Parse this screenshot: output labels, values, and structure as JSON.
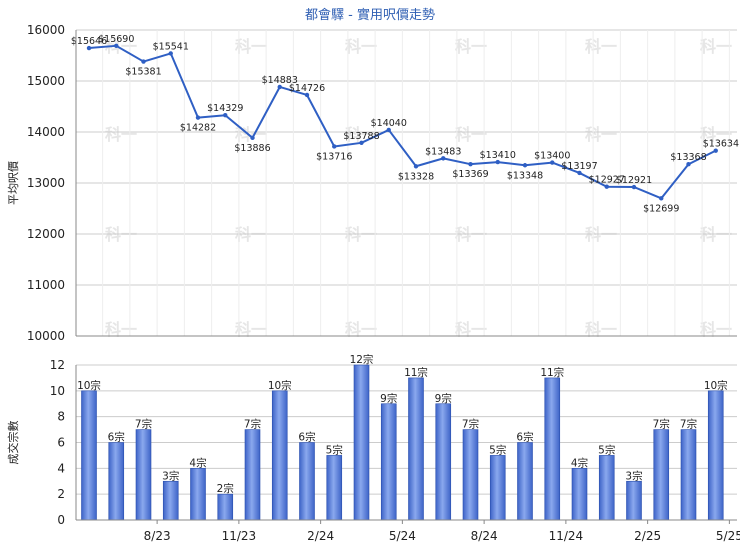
{
  "colors": {
    "line": "#2f5fc4",
    "bar": "#3d63c7",
    "bar_light": "#8aa8ee",
    "grid": "#cccccc",
    "title": "#2f5fb3"
  },
  "chart_data": [
    {
      "type": "line",
      "title": "都會驛 - 實用呎價走勢",
      "ylabel": "平均呎價",
      "ylim": [
        10000,
        16000
      ],
      "yticks": [
        "10000",
        "11000",
        "12000",
        "13000",
        "14000",
        "15000",
        "16000"
      ],
      "grid": true,
      "series": [
        {
          "values": [
            15646,
            15690,
            15381,
            15541,
            14282,
            14329,
            13886,
            14883,
            14726,
            13716,
            13788,
            14040,
            13328,
            13483,
            13369,
            13410,
            13348,
            13400,
            13197,
            12927,
            12921,
            12699,
            13368,
            13634
          ],
          "labels": [
            "$15646",
            "$15690",
            "$15381",
            "$15541",
            "$14282",
            "$14329",
            "$13886",
            "$14883",
            "$14726",
            "$13716",
            "$13788",
            "$14040",
            "$13328",
            "$13483",
            "$13369",
            "$13410",
            "$13348",
            "$13400",
            "$13197",
            "$12927",
            "$12921",
            "$12699",
            "$13368",
            "$13634"
          ]
        }
      ]
    },
    {
      "type": "bar",
      "ylabel": "成交宗數",
      "ylim": [
        0,
        12
      ],
      "yticks": [
        "0",
        "2",
        "4",
        "6",
        "8",
        "10",
        "12"
      ],
      "grid": true,
      "values": [
        10,
        6,
        7,
        3,
        4,
        2,
        7,
        10,
        6,
        5,
        12,
        9,
        11,
        9,
        7,
        5,
        6,
        11,
        4,
        5,
        3,
        7,
        7,
        10
      ],
      "labels": [
        "10宗",
        "6宗",
        "7宗",
        "3宗",
        "4宗",
        "2宗",
        "7宗",
        "10宗",
        "6宗",
        "5宗",
        "12宗",
        "9宗",
        "11宗",
        "9宗",
        "7宗",
        "5宗",
        "6宗",
        "11宗",
        "4宗",
        "5宗",
        "3宗",
        "7宗",
        "7宗",
        "10宗"
      ],
      "x_ticks": [
        {
          "index": 2,
          "label": "8/23"
        },
        {
          "index": 5,
          "label": "11/23"
        },
        {
          "index": 8,
          "label": "2/24"
        },
        {
          "index": 11,
          "label": "5/24"
        },
        {
          "index": 14,
          "label": "8/24"
        },
        {
          "index": 17,
          "label": "11/24"
        },
        {
          "index": 20,
          "label": "2/25"
        },
        {
          "index": 23,
          "label": "5/25"
        }
      ]
    }
  ],
  "watermark": "科一"
}
